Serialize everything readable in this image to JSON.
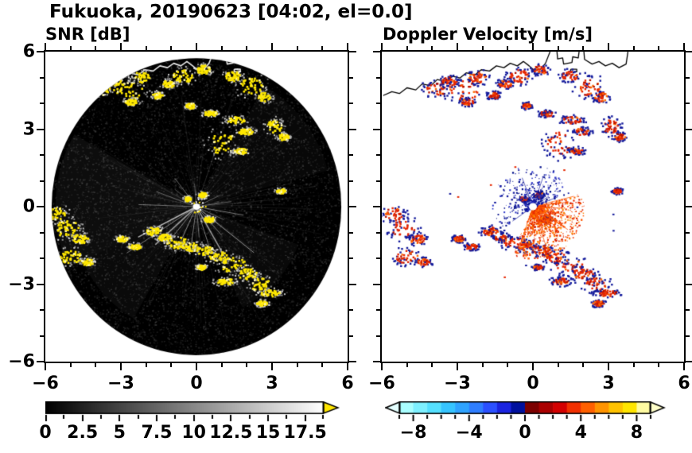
{
  "title": "Fukuoka, 20190623 [04:02, el=0.0]",
  "panels": {
    "snr": {
      "title": "SNR [dB]",
      "xtick_labels": [
        "−6",
        "−3",
        "0",
        "3",
        "6"
      ],
      "xtick_values": [
        -6,
        -3,
        0,
        3,
        6
      ],
      "ytick_labels": [
        "6",
        "3",
        "0",
        "−3",
        "−6"
      ],
      "ytick_values": [
        6,
        3,
        0,
        -3,
        -6
      ]
    },
    "doppler": {
      "title": "Doppler Velocity [m/s]",
      "xtick_labels": [
        "−6",
        "−3",
        "0",
        "3",
        "6"
      ],
      "xtick_values": [
        -6,
        -3,
        0,
        3,
        6
      ]
    }
  },
  "colorbars": {
    "snr": {
      "min": 0,
      "max": 18.75,
      "labels": [
        "0",
        "2.5",
        "5",
        "7.5",
        "10",
        "12.5",
        "15",
        "17.5"
      ],
      "label_values": [
        0,
        2.5,
        5,
        7.5,
        10,
        12.5,
        15,
        17.5
      ],
      "gradient_start": "#000000",
      "gradient_end": "#ffffff",
      "over_arrow_color": "#ffe600"
    },
    "doppler": {
      "min": -9,
      "max": 9,
      "labels": [
        "−8",
        "−4",
        "0",
        "4",
        "8"
      ],
      "label_values": [
        -8,
        -4,
        0,
        4,
        8
      ],
      "under_arrow_color": "#e4ffff",
      "over_arrow_color": "#ffffc9",
      "segment_colors": [
        "#a9feff",
        "#7df0ff",
        "#55e0ff",
        "#36c4ff",
        "#2fa3ff",
        "#2f7eff",
        "#2b50ff",
        "#1b24e0",
        "#00109e",
        "#7c0000",
        "#aa0000",
        "#d40000",
        "#f23000",
        "#ff6000",
        "#ff9400",
        "#ffc200",
        "#ffe500",
        "#fffba2"
      ]
    }
  },
  "chart_data": {
    "type": "radar_ppi_pair",
    "site": "Fukuoka",
    "date": "20190623",
    "time": "04:02",
    "elevation": "0.0",
    "axis_km": {
      "xmin": -6,
      "xmax": 6,
      "ymin": -6,
      "ymax": 6
    },
    "scan_radius_km": 5.75,
    "snr": {
      "background": "#000000",
      "echo_color": "#ffe800",
      "units": "dB"
    },
    "doppler": {
      "background": "#ffffff",
      "toward_color": "#e62600",
      "away_color": "#141b9c",
      "units": "m/s"
    },
    "echoes": [
      [
        -3.85,
        4.55,
        0.5,
        0.28
      ],
      [
        -3.3,
        4.85,
        0.35,
        0.2
      ],
      [
        -2.75,
        4.5,
        0.7,
        0.45
      ],
      [
        -2.2,
        5.0,
        0.4,
        0.25
      ],
      [
        -2.6,
        4.05,
        0.28,
        0.14
      ],
      [
        -1.55,
        4.3,
        0.24,
        0.14
      ],
      [
        -1.1,
        4.75,
        0.3,
        0.16
      ],
      [
        -0.55,
        5.05,
        0.45,
        0.3
      ],
      [
        0.3,
        5.3,
        0.3,
        0.2
      ],
      [
        1.45,
        5.05,
        0.35,
        0.22
      ],
      [
        2.2,
        4.65,
        0.55,
        0.4
      ],
      [
        2.7,
        4.25,
        0.3,
        0.2
      ],
      [
        3.1,
        3.1,
        0.35,
        0.3
      ],
      [
        3.45,
        2.7,
        0.25,
        0.15
      ],
      [
        -0.25,
        3.9,
        0.2,
        0.12
      ],
      [
        0.55,
        3.6,
        0.3,
        0.12
      ],
      [
        1.55,
        3.35,
        0.45,
        0.15
      ],
      [
        1.95,
        2.9,
        0.35,
        0.15
      ],
      [
        1.05,
        2.45,
        0.6,
        0.5
      ],
      [
        1.75,
        2.15,
        0.3,
        0.12
      ],
      [
        -5.55,
        -0.3,
        0.45,
        0.3
      ],
      [
        -5.15,
        -0.85,
        0.55,
        0.4
      ],
      [
        -4.6,
        -1.25,
        0.35,
        0.2
      ],
      [
        -5.0,
        -1.95,
        0.5,
        0.3
      ],
      [
        -4.35,
        -2.15,
        0.3,
        0.15
      ],
      [
        -2.95,
        -1.25,
        0.25,
        0.12
      ],
      [
        -2.45,
        -1.55,
        0.28,
        0.12
      ],
      [
        -1.7,
        -0.95,
        0.35,
        0.18
      ],
      [
        -1.25,
        -1.2,
        0.3,
        0.15
      ],
      [
        -0.75,
        -1.4,
        0.5,
        0.25
      ],
      [
        -0.2,
        -1.55,
        0.4,
        0.2
      ],
      [
        0.35,
        -1.7,
        0.4,
        0.2
      ],
      [
        0.9,
        -1.95,
        0.45,
        0.25
      ],
      [
        1.45,
        -2.25,
        0.6,
        0.35
      ],
      [
        2.0,
        -2.6,
        0.45,
        0.25
      ],
      [
        2.5,
        -3.0,
        0.5,
        0.3
      ],
      [
        1.15,
        -2.9,
        0.4,
        0.15
      ],
      [
        0.2,
        -2.35,
        0.2,
        0.1
      ],
      [
        2.95,
        -3.35,
        0.45,
        0.15
      ],
      [
        0.25,
        0.45,
        0.2,
        0.12
      ],
      [
        -0.35,
        0.3,
        0.15,
        0.1
      ],
      [
        0.5,
        -0.5,
        0.25,
        0.12
      ],
      [
        3.35,
        0.6,
        0.2,
        0.1
      ],
      [
        2.6,
        -3.75,
        0.25,
        0.12
      ]
    ],
    "coastline": [
      [
        [
          -5.95,
          4.3
        ],
        [
          -5.6,
          4.45
        ],
        [
          -5.3,
          4.38
        ],
        [
          -5.0,
          4.6
        ],
        [
          -4.65,
          4.52
        ],
        [
          -4.4,
          4.75
        ],
        [
          -4.05,
          4.68
        ],
        [
          -3.8,
          4.92
        ],
        [
          -3.45,
          4.85
        ],
        [
          -3.2,
          5.05
        ],
        [
          -2.9,
          4.98
        ],
        [
          -2.65,
          5.18
        ],
        [
          -2.3,
          5.1
        ],
        [
          -2.05,
          5.3
        ],
        [
          -1.72,
          5.25
        ],
        [
          -1.45,
          5.45
        ],
        [
          -1.15,
          5.38
        ],
        [
          -0.9,
          5.55
        ],
        [
          -0.62,
          5.45
        ],
        [
          -0.38,
          5.62
        ],
        [
          -0.15,
          5.45
        ],
        [
          0.05,
          5.28
        ],
        [
          0.3,
          5.32
        ],
        [
          0.5,
          5.55
        ],
        [
          0.62,
          5.85
        ],
        [
          0.7,
          6.05
        ]
      ],
      [
        [
          0.95,
          6.05
        ],
        [
          0.98,
          5.72
        ],
        [
          1.18,
          5.76
        ],
        [
          1.22,
          5.52
        ],
        [
          1.55,
          5.58
        ],
        [
          1.58,
          5.8
        ],
        [
          1.8,
          5.76
        ],
        [
          1.84,
          6.05
        ]
      ],
      [
        [
          2.02,
          6.05
        ],
        [
          2.05,
          5.7
        ],
        [
          2.35,
          5.52
        ],
        [
          2.62,
          5.62
        ],
        [
          2.88,
          5.45
        ],
        [
          3.15,
          5.55
        ],
        [
          3.42,
          5.38
        ],
        [
          3.7,
          5.52
        ],
        [
          3.78,
          6.05
        ]
      ],
      [
        [
          1.5,
          5.32
        ],
        [
          1.74,
          5.32
        ],
        [
          1.74,
          5.22
        ],
        [
          1.5,
          5.22
        ],
        [
          1.5,
          5.32
        ]
      ]
    ],
    "snr_streaks": [
      [
        207,
        2.6,
        1.5,
        0.75
      ],
      [
        213,
        3.3,
        1,
        0.5
      ],
      [
        222,
        2.2,
        1.5,
        0.65
      ],
      [
        231,
        1.6,
        1,
        0.5
      ],
      [
        245,
        2.0,
        1,
        0.55
      ],
      [
        262,
        1.5,
        1,
        0.5
      ],
      [
        275,
        1.2,
        1,
        0.4
      ],
      [
        288,
        1.8,
        1,
        0.5
      ],
      [
        300,
        2.4,
        1.5,
        0.6
      ],
      [
        312,
        1.5,
        1,
        0.5
      ],
      [
        322,
        2.9,
        1,
        0.6
      ],
      [
        335,
        1.2,
        1,
        0.4
      ],
      [
        350,
        1.9,
        1,
        0.5
      ],
      [
        8,
        1.4,
        1,
        0.4
      ],
      [
        25,
        1.0,
        1,
        0.35
      ],
      [
        48,
        0.8,
        1,
        0.3
      ],
      [
        95,
        0.9,
        1,
        0.3
      ],
      [
        128,
        1.4,
        1,
        0.4
      ],
      [
        142,
        1.1,
        1,
        0.35
      ],
      [
        160,
        1.7,
        1,
        0.4
      ],
      [
        178,
        2.3,
        1,
        0.45
      ]
    ],
    "snr_haze": [
      [
        150,
        205,
        5.6,
        0.05
      ],
      [
        205,
        240,
        5.0,
        0.04
      ],
      [
        15,
        60,
        5.4,
        0.03
      ],
      [
        295,
        340,
        4.3,
        0.035
      ]
    ],
    "doppler_fan": {
      "toward_angles": [
        -115,
        15
      ],
      "away_angles": [
        20,
        215
      ],
      "toward_rmax": 1.9,
      "away_rmax": 1.5
    }
  }
}
